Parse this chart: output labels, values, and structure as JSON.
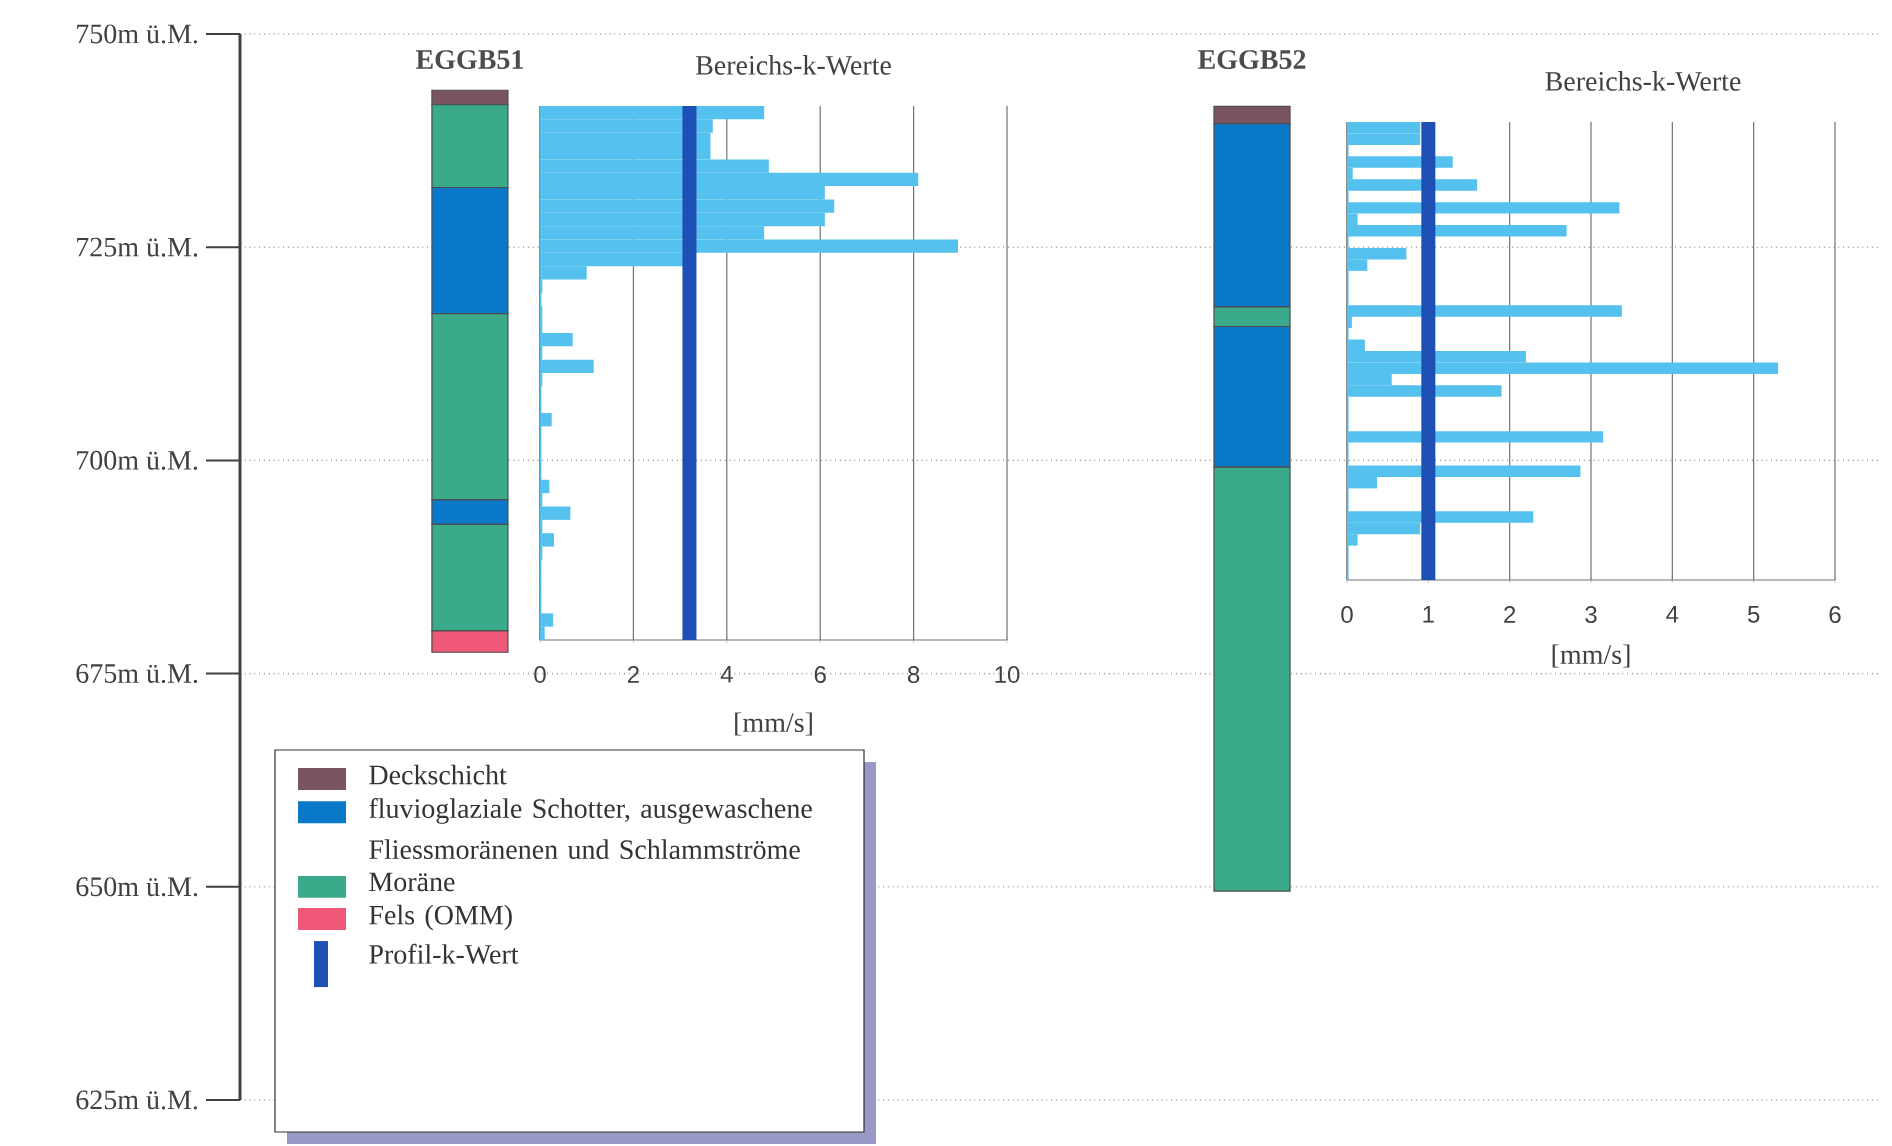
{
  "chart_data": [
    {
      "type": "bar",
      "categories": [
        "EGGB51",
        "EGGB52"
      ],
      "ylim": [
        625,
        750
      ],
      "yticks": [
        {
          "value": 750,
          "label": "750m ü.M."
        },
        {
          "value": 725,
          "label": "725m ü.M."
        },
        {
          "value": 700,
          "label": "700m ü.M."
        },
        {
          "value": 675,
          "label": "675m ü.M."
        },
        {
          "value": 650,
          "label": "650m ü.M."
        },
        {
          "value": 625,
          "label": "625m ü.M."
        }
      ],
      "grid": "y",
      "legend": "bottom left",
      "series": [
        {
          "name": "Deckschicht",
          "color": "#7a5560",
          "values": [
            1.7,
            2.0
          ],
          "base": [
            741.7,
            739.5
          ]
        },
        {
          "name": "fluvioglaziale Schotter, ausgewaschene Fliessmoränenen und Schlammströme",
          "color": "#0a78c8",
          "values": [
            14.8,
            21.5
          ],
          "base": [
            717.2,
            718.0
          ]
        },
        {
          "color": "#0a78c8",
          "values": [
            2.9,
            16.5
          ],
          "base": [
            692.5,
            699.2
          ]
        },
        {
          "name": "Moräne",
          "color": "#3aaa8a",
          "values": [
            9.7,
            2.3
          ],
          "base": [
            732.0,
            715.7
          ]
        },
        {
          "color": "#3aaa8a",
          "values": [
            21.8,
            49.7
          ],
          "base": [
            695.4,
            649.5
          ]
        },
        {
          "color": "#3aaa8a",
          "values": [
            12.5,
            null
          ],
          "base": [
            680.0,
            null
          ]
        },
        {
          "name": "Fels (OMM)",
          "color": "#f0587a",
          "values": [
            2.5,
            null
          ],
          "base": [
            677.5,
            null
          ]
        }
      ]
    },
    {
      "type": "bar",
      "orientation": "horizontal",
      "title": "Bereichs-k-Werte",
      "xlabel": "[mm/s]",
      "xlim": [
        0,
        10
      ],
      "xticks": [
        0,
        2,
        4,
        6,
        8,
        10
      ],
      "grid": "x",
      "categories": [
        null,
        null,
        null,
        null,
        null,
        null,
        null,
        null,
        null,
        null,
        null,
        null,
        null,
        null,
        null,
        null,
        null,
        null,
        null,
        null,
        null,
        null,
        null,
        null,
        null,
        null,
        null,
        null,
        null,
        null,
        null,
        null,
        null,
        null,
        null,
        null,
        null,
        null,
        null,
        null
      ],
      "series": [
        {
          "color": "#55c1ee",
          "values": [
            4.8,
            3.7,
            3.65,
            3.65,
            4.9,
            8.1,
            6.1,
            6.3,
            6.1,
            4.8,
            8.95,
            3.1,
            1.0,
            0.05,
            0.03,
            0.05,
            0.05,
            0.7,
            0.05,
            1.15,
            0.05,
            0.03,
            0.03,
            0.25,
            0.03,
            0.03,
            0.03,
            0.03,
            0.2,
            0.05,
            0.65,
            0.05,
            0.3,
            0.05,
            0.03,
            0.03,
            0.03,
            0.03,
            0.28,
            0.1
          ]
        }
      ],
      "ref_lines": [
        {
          "axis": "x",
          "value": 3.2,
          "label": "Profil-k-Wert",
          "color": "#1e4fb4"
        }
      ]
    },
    {
      "type": "bar",
      "orientation": "horizontal",
      "title": "Bereichs-k-Werte",
      "xlabel": "[mm/s]",
      "xlim": [
        0,
        6
      ],
      "xticks": [
        0,
        1,
        2,
        3,
        4,
        5,
        6
      ],
      "grid": "x",
      "categories": [
        null,
        null,
        null,
        null,
        null,
        null,
        null,
        null,
        null,
        null,
        null,
        null,
        null,
        null,
        null,
        null,
        null,
        null,
        null,
        null,
        null,
        null,
        null,
        null,
        null,
        null,
        null,
        null,
        null,
        null,
        null,
        null,
        null,
        null,
        null,
        null,
        null,
        null,
        null,
        null
      ],
      "series": [
        {
          "color": "#55c1ee",
          "values": [
            0.9,
            0.9,
            0.02,
            1.3,
            0.07,
            1.6,
            0.02,
            3.35,
            0.13,
            2.7,
            0.02,
            0.73,
            0.25,
            0.02,
            0.02,
            0.02,
            3.38,
            0.06,
            0.02,
            0.22,
            2.2,
            5.3,
            0.55,
            1.9,
            0.02,
            0.02,
            0.02,
            3.15,
            0.02,
            0.02,
            2.87,
            0.37,
            0.02,
            0.02,
            2.29,
            0.9,
            0.13,
            0.02,
            0.02,
            0.02
          ]
        }
      ],
      "ref_lines": [
        {
          "axis": "x",
          "value": 1.0,
          "color": "#1e4fb4"
        }
      ]
    }
  ]
}
